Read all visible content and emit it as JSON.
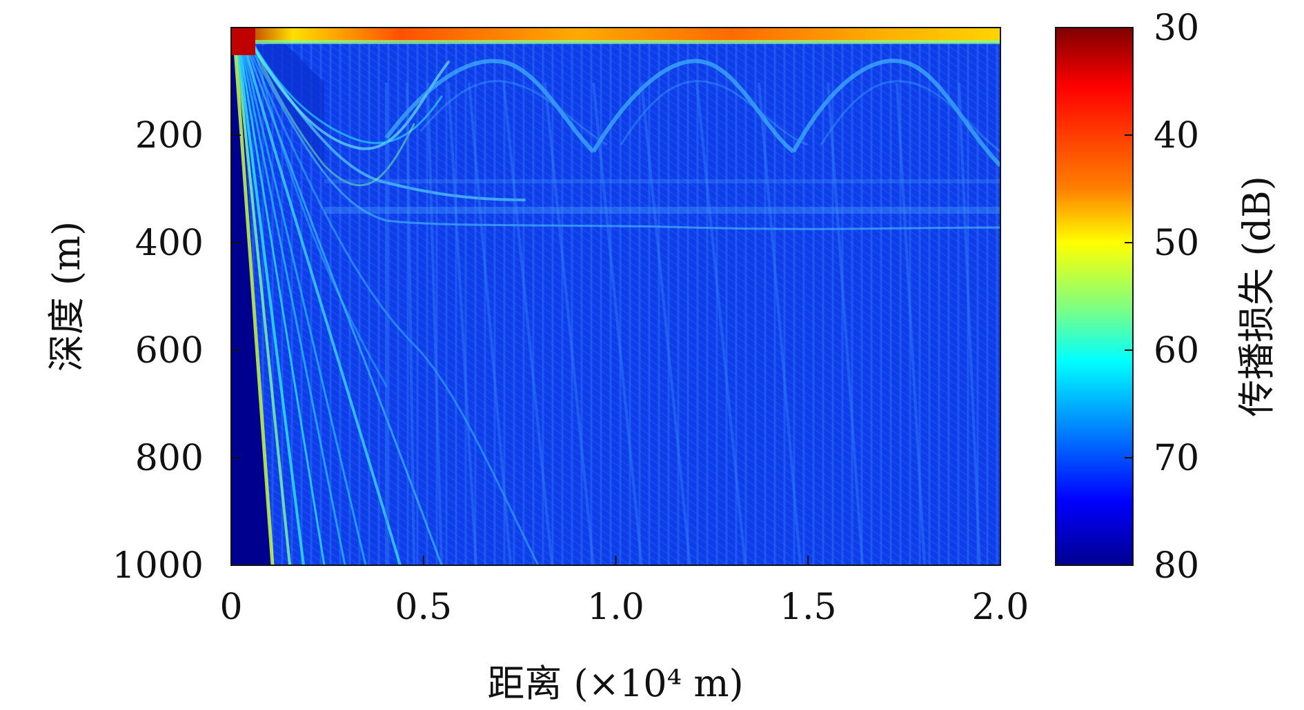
{
  "chart_data": {
    "type": "heatmap",
    "title": "",
    "xlabel": "距离 (×10⁴ m)",
    "ylabel": "深度 (m)",
    "xlim": [
      0,
      2.0
    ],
    "ylim": [
      1000,
      0
    ],
    "x_ticks": [
      0,
      0.5,
      1.0,
      1.5,
      2.0
    ],
    "x_tick_labels": [
      "0",
      "0.5",
      "1.0",
      "1.5",
      "2.0"
    ],
    "y_ticks": [
      200,
      400,
      600,
      800,
      1000
    ],
    "y_tick_labels": [
      "200",
      "400",
      "600",
      "800",
      "1000"
    ],
    "colorbar": {
      "label": "传播损失 (dB)",
      "range": [
        30,
        80
      ],
      "reversed": true,
      "ticks": [
        30,
        40,
        50,
        60,
        70,
        80
      ],
      "tick_labels": [
        "30",
        "40",
        "50",
        "60",
        "70",
        "80"
      ],
      "colormap": "jet",
      "stops": [
        "#7f0000",
        "#ff0000",
        "#ff8000",
        "#ffff00",
        "#80ff80",
        "#00ffff",
        "#0080ff",
        "#0000ff",
        "#00008f"
      ]
    },
    "grid": false,
    "legend": "none"
  }
}
